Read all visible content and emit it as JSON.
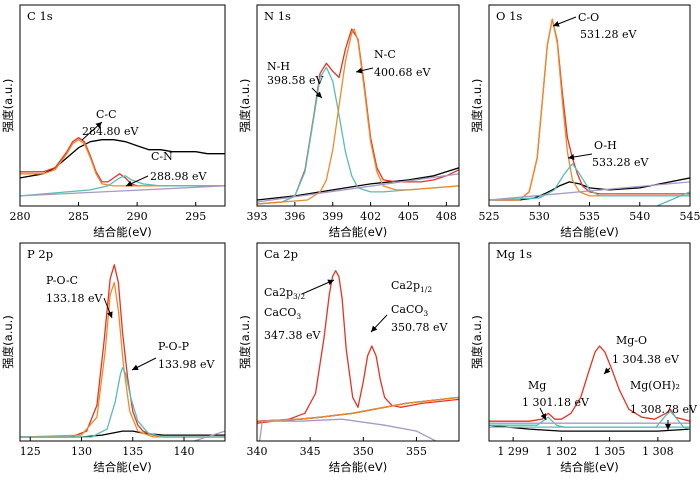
{
  "chart_data": [
    {
      "type": "line",
      "title": "C 1s",
      "xlabel": "结合能(eV)",
      "ylabel": "强度(a.u.)",
      "xlim": [
        280,
        297.5
      ],
      "ylim": [
        0,
        1
      ],
      "xticks": [
        280,
        285,
        290,
        295
      ],
      "annotations": [
        {
          "label": "C-C",
          "text": "284.80 eV"
        },
        {
          "label": "C-N",
          "text": "288.98 eV"
        }
      ],
      "series": [
        {
          "color": "#000000",
          "x": [
            280,
            282,
            283,
            284,
            285,
            286,
            287,
            288,
            289,
            290,
            291,
            292,
            293,
            294,
            295,
            296,
            297.5
          ],
          "y": [
            0.14,
            0.16,
            0.19,
            0.24,
            0.29,
            0.32,
            0.33,
            0.33,
            0.32,
            0.3,
            0.28,
            0.28,
            0.27,
            0.27,
            0.27,
            0.26,
            0.26
          ]
        },
        {
          "color": "#e53322",
          "x": [
            280,
            282,
            283,
            284,
            284.5,
            285,
            285.5,
            286,
            286.5,
            287,
            287.5,
            288,
            288.5,
            289,
            289.5,
            290,
            291,
            292,
            294,
            297.5
          ],
          "y": [
            0.17,
            0.17,
            0.19,
            0.27,
            0.32,
            0.34,
            0.32,
            0.25,
            0.17,
            0.12,
            0.12,
            0.14,
            0.16,
            0.14,
            0.11,
            0.1,
            0.1,
            0.1,
            0.1,
            0.1
          ]
        },
        {
          "color": "#ef8a2a",
          "x": [
            280,
            282,
            283,
            284,
            284.5,
            285,
            285.5,
            286,
            286.5,
            287,
            288,
            290,
            297.5
          ],
          "y": [
            0.16,
            0.16,
            0.18,
            0.26,
            0.31,
            0.33,
            0.31,
            0.24,
            0.16,
            0.11,
            0.1,
            0.1,
            0.1
          ]
        },
        {
          "color": "#58bdb5",
          "x": [
            280,
            282,
            284,
            286,
            287.5,
            288.5,
            289,
            289.5,
            290.5,
            292,
            297.5
          ],
          "y": [
            0.05,
            0.06,
            0.07,
            0.08,
            0.1,
            0.14,
            0.15,
            0.13,
            0.11,
            0.1,
            0.1
          ]
        },
        {
          "color": "#a899c6",
          "x": [
            280,
            297.5
          ],
          "y": [
            0.05,
            0.1
          ]
        }
      ]
    },
    {
      "type": "line",
      "title": "N 1s",
      "xlabel": "结合能(eV)",
      "ylabel": "强度(a.u.)",
      "xlim": [
        393,
        409
      ],
      "ylim": [
        0,
        1
      ],
      "xticks": [
        393,
        396,
        399,
        402,
        405,
        408
      ],
      "annotations": [
        {
          "label": "N-H",
          "text": "398.58 eV"
        },
        {
          "label": "N-C",
          "text": "400.68 eV"
        }
      ],
      "series": [
        {
          "color": "#000000",
          "x": [
            393,
            396,
            399,
            402,
            405,
            407,
            408,
            409
          ],
          "y": [
            0.03,
            0.05,
            0.08,
            0.11,
            0.13,
            0.15,
            0.17,
            0.19
          ]
        },
        {
          "color": "#e53322",
          "x": [
            393,
            395,
            396,
            396.8,
            397.5,
            398,
            398.5,
            399,
            399.5,
            400,
            400.5,
            401,
            401.5,
            402,
            402.5,
            403,
            404,
            405,
            406,
            407,
            408,
            409
          ],
          "y": [
            0.01,
            0.02,
            0.05,
            0.18,
            0.45,
            0.66,
            0.71,
            0.67,
            0.64,
            0.78,
            0.88,
            0.83,
            0.6,
            0.34,
            0.19,
            0.13,
            0.12,
            0.12,
            0.12,
            0.13,
            0.15,
            0.18
          ]
        },
        {
          "color": "#58bdb5",
          "x": [
            393,
            395,
            396,
            396.8,
            397.5,
            398,
            398.5,
            399,
            399.5,
            400,
            400.5,
            401,
            402,
            403,
            405,
            409
          ],
          "y": [
            0.01,
            0.02,
            0.05,
            0.17,
            0.44,
            0.64,
            0.69,
            0.62,
            0.45,
            0.27,
            0.15,
            0.09,
            0.07,
            0.07,
            0.08,
            0.1
          ]
        },
        {
          "color": "#ef8a2a",
          "x": [
            393,
            397,
            398,
            398.5,
            399,
            399.5,
            400,
            400.5,
            400.7,
            401,
            401.5,
            402,
            402.5,
            403,
            404,
            405,
            409
          ],
          "y": [
            0.01,
            0.03,
            0.07,
            0.13,
            0.28,
            0.5,
            0.72,
            0.86,
            0.88,
            0.82,
            0.58,
            0.32,
            0.17,
            0.1,
            0.08,
            0.08,
            0.1
          ]
        },
        {
          "color": "#a899c6",
          "x": [
            393,
            409
          ],
          "y": [
            0.02,
            0.16
          ]
        }
      ]
    },
    {
      "type": "line",
      "title": "O 1s",
      "xlabel": "结合能(eV)",
      "ylabel": "强度(a.u.)",
      "xlim": [
        525,
        545
      ],
      "ylim": [
        0,
        1
      ],
      "xticks": [
        525,
        530,
        535,
        540,
        545
      ],
      "annotations": [
        {
          "label": "C-O",
          "text": "531.28 eV"
        },
        {
          "label": "O-H",
          "text": "533.28 eV"
        }
      ],
      "series": [
        {
          "color": "#000000",
          "x": [
            525,
            528,
            529.5,
            530.5,
            531.3,
            532,
            533,
            534,
            535,
            537,
            540,
            542,
            545
          ],
          "y": [
            0.03,
            0.03,
            0.04,
            0.06,
            0.08,
            0.1,
            0.12,
            0.11,
            0.09,
            0.08,
            0.09,
            0.11,
            0.14
          ]
        },
        {
          "color": "#e53322",
          "x": [
            525,
            528,
            529,
            529.8,
            530.3,
            530.8,
            531.3,
            531.8,
            532.3,
            532.8,
            533.3,
            533.8,
            534.3,
            535,
            536,
            538,
            545
          ],
          "y": [
            0.03,
            0.03,
            0.07,
            0.24,
            0.52,
            0.8,
            0.93,
            0.82,
            0.56,
            0.34,
            0.24,
            0.16,
            0.1,
            0.07,
            0.06,
            0.06,
            0.06
          ]
        },
        {
          "color": "#ef8a2a",
          "x": [
            525,
            528,
            529,
            529.8,
            530.3,
            530.8,
            531.3,
            531.8,
            532.3,
            532.8,
            533.3,
            534,
            535,
            545
          ],
          "y": [
            0.03,
            0.03,
            0.07,
            0.24,
            0.52,
            0.8,
            0.93,
            0.81,
            0.52,
            0.27,
            0.13,
            0.07,
            0.05,
            0.05
          ]
        },
        {
          "color": "#58bdb5",
          "x": [
            525,
            530,
            531.5,
            532.5,
            533.3,
            534,
            535,
            536,
            545
          ],
          "y": [
            0.03,
            0.04,
            0.08,
            0.16,
            0.21,
            0.16,
            0.08,
            0.05,
            0.05
          ]
        },
        {
          "color": "#58bdb5",
          "x": [
            537,
            545
          ],
          "y": [
            -0.1,
            0.07
          ]
        },
        {
          "color": "#a899c6",
          "x": [
            525,
            545
          ],
          "y": [
            0.03,
            0.12
          ]
        }
      ]
    },
    {
      "type": "line",
      "title": "P 2p",
      "xlabel": "结合能(eV)",
      "ylabel": "强度(a.u.)",
      "xlim": [
        124,
        144
      ],
      "ylim": [
        0,
        1
      ],
      "xticks": [
        125,
        130,
        135,
        140
      ],
      "annotations": [
        {
          "label": "P-O-C",
          "text": "133.18 eV"
        },
        {
          "label": "P-O-P",
          "text": "133.98 eV"
        }
      ],
      "series": [
        {
          "color": "#000000",
          "x": [
            124,
            128,
            130,
            132,
            133,
            134,
            135,
            136,
            138,
            141,
            144
          ],
          "y": [
            0.02,
            0.02,
            0.02,
            0.03,
            0.04,
            0.05,
            0.05,
            0.04,
            0.03,
            0.03,
            0.03
          ]
        },
        {
          "color": "#e53322",
          "x": [
            124,
            129,
            130.5,
            131.5,
            132.2,
            132.8,
            133.2,
            133.6,
            134,
            134.5,
            135,
            135.5,
            136,
            137,
            138,
            144
          ],
          "y": [
            0.02,
            0.02,
            0.05,
            0.18,
            0.5,
            0.82,
            0.89,
            0.8,
            0.55,
            0.32,
            0.15,
            0.08,
            0.05,
            0.03,
            0.02,
            0.02
          ]
        },
        {
          "color": "#ef8a2a",
          "x": [
            124,
            130,
            131.5,
            132.3,
            132.8,
            133.2,
            133.6,
            134.1,
            134.7,
            135.5,
            137,
            144
          ],
          "y": [
            0.02,
            0.03,
            0.12,
            0.45,
            0.74,
            0.8,
            0.66,
            0.38,
            0.15,
            0.05,
            0.02,
            0.02
          ]
        },
        {
          "color": "#58bdb5",
          "x": [
            124,
            131,
            132.5,
            133.3,
            133.8,
            134,
            134.3,
            134.8,
            135.5,
            136.5,
            138,
            144
          ],
          "y": [
            0.02,
            0.02,
            0.06,
            0.2,
            0.34,
            0.37,
            0.34,
            0.22,
            0.1,
            0.04,
            0.02,
            0.02
          ]
        },
        {
          "color": "#a899c6",
          "x": [
            138,
            144
          ],
          "y": [
            -0.05,
            0.05
          ]
        }
      ]
    },
    {
      "type": "line",
      "title": "Ca 2p",
      "xlabel": "结合能(eV)",
      "ylabel": "强度(a.u.)",
      "xlim": [
        340,
        359
      ],
      "ylim": [
        0,
        1
      ],
      "xticks": [
        340,
        345,
        350,
        355
      ],
      "annotations": [
        {
          "label": "Ca2p3/2",
          "text": "347.38 eV",
          "extra": "CaCO3"
        },
        {
          "label": "Ca2p1/2",
          "text": "350.78 eV",
          "extra": "CaCO3"
        }
      ],
      "series": [
        {
          "color": "#000000",
          "x": [
            340,
            344,
            346,
            347.4,
            349,
            350,
            351,
            352,
            354,
            359
          ],
          "y": [
            0.1,
            0.11,
            0.12,
            0.13,
            0.14,
            0.15,
            0.16,
            0.17,
            0.19,
            0.22
          ]
        },
        {
          "color": "#e53322",
          "x": [
            340,
            343,
            344.5,
            345.5,
            346.3,
            346.8,
            347.1,
            347.4,
            347.7,
            348,
            348.4,
            349,
            349.5,
            350,
            350.4,
            350.8,
            351.2,
            351.6,
            352,
            352.7,
            353.5,
            354.5,
            355.5,
            359
          ],
          "y": [
            0.09,
            0.11,
            0.14,
            0.24,
            0.52,
            0.74,
            0.83,
            0.86,
            0.83,
            0.72,
            0.46,
            0.22,
            0.17,
            0.3,
            0.43,
            0.48,
            0.43,
            0.31,
            0.22,
            0.18,
            0.17,
            0.18,
            0.19,
            0.21
          ]
        },
        {
          "color": "#ef8a2a",
          "x": [
            340,
            344,
            346,
            347.4,
            349,
            350,
            351,
            352,
            354,
            359
          ],
          "y": [
            0.1,
            0.11,
            0.12,
            0.13,
            0.14,
            0.15,
            0.16,
            0.17,
            0.19,
            0.22
          ]
        },
        {
          "color": "#a899c6",
          "x": [
            340,
            340.5,
            344,
            348,
            352,
            355,
            359
          ],
          "y": [
            -0.1,
            0.1,
            0.1,
            0.11,
            0.08,
            0.05,
            -0.06
          ]
        }
      ]
    },
    {
      "type": "line",
      "title": "Mg 1s",
      "xlabel": "结合能(eV)",
      "ylabel": "强度(a.u.)",
      "xlim": [
        1297.5,
        1310
      ],
      "ylim": [
        0,
        1
      ],
      "xticks": [
        1299,
        1302,
        1305,
        1308
      ],
      "xtick_labels": [
        "1 299",
        "1 302",
        "1 305",
        "1 308"
      ],
      "annotations": [
        {
          "label": "Mg",
          "text": "1 301.18 eV"
        },
        {
          "label": "Mg-O",
          "text": "1 304.38 eV"
        },
        {
          "label": "Mg(OH)₂",
          "text": "1 308.78 eV"
        }
      ],
      "series": [
        {
          "color": "#000000",
          "x": [
            1297.5,
            1300,
            1302,
            1304,
            1306,
            1308,
            1310
          ],
          "y": [
            0.08,
            0.06,
            0.05,
            0.05,
            0.05,
            0.05,
            0.06
          ]
        },
        {
          "color": "#e53322",
          "x": [
            1297.5,
            1300,
            1300.8,
            1301.18,
            1301.6,
            1302,
            1302.6,
            1303.2,
            1303.7,
            1304.1,
            1304.38,
            1304.7,
            1305.1,
            1305.6,
            1306.2,
            1307,
            1307.8,
            1308.5,
            1308.78,
            1309.1,
            1310
          ],
          "y": [
            0.1,
            0.1,
            0.11,
            0.14,
            0.11,
            0.11,
            0.14,
            0.22,
            0.35,
            0.45,
            0.48,
            0.45,
            0.37,
            0.26,
            0.16,
            0.12,
            0.11,
            0.14,
            0.16,
            0.12,
            0.1
          ]
        },
        {
          "color": "#58bdb5",
          "x": [
            1297.5,
            1300.5,
            1301.18,
            1301.7,
            1302.2,
            1310
          ],
          "y": [
            0.08,
            0.08,
            0.12,
            0.08,
            0.07,
            0.07
          ]
        },
        {
          "color": "#58bdb5",
          "x": [
            1297.5,
            1307.9,
            1308.5,
            1308.78,
            1309.1,
            1309.6,
            1310
          ],
          "y": [
            0.07,
            0.07,
            0.13,
            0.15,
            0.12,
            0.07,
            0.06
          ]
        },
        {
          "color": "#a899c6",
          "x": [
            1297.5,
            1310
          ],
          "y": [
            0.09,
            0.09
          ]
        }
      ]
    }
  ]
}
